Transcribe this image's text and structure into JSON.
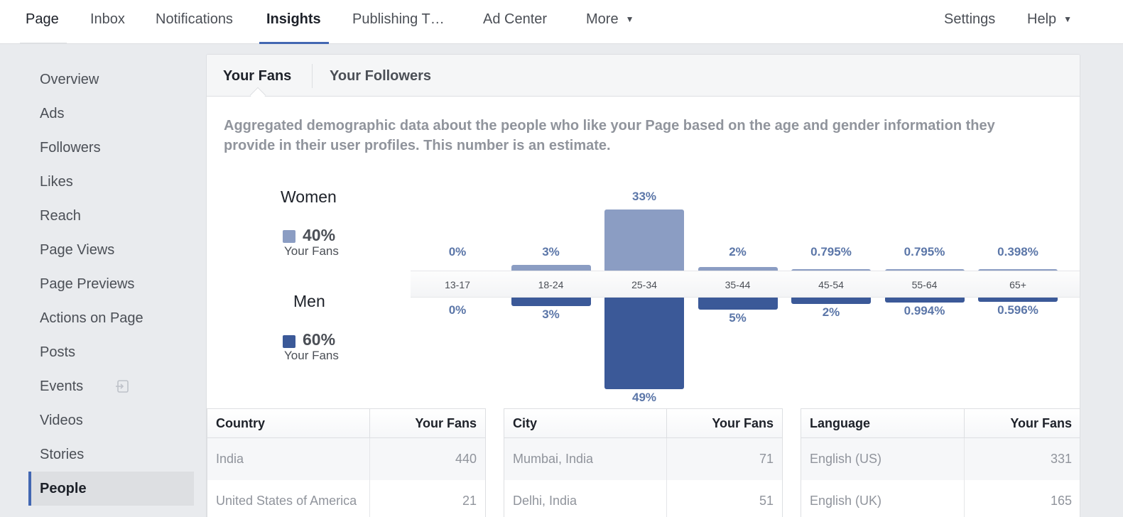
{
  "topnav": {
    "items": [
      "Page",
      "Inbox",
      "Notifications",
      "Insights",
      "Publishing T…",
      "Ad Center",
      "More"
    ],
    "settings": "Settings",
    "help": "Help",
    "caret": "▼"
  },
  "sidebar": {
    "items": [
      "Overview",
      "Ads",
      "Followers",
      "Likes",
      "Reach",
      "Page Views",
      "Page Previews",
      "Actions on Page",
      "Posts",
      "Events",
      "Videos",
      "Stories",
      "People"
    ]
  },
  "subtabs": [
    "Your Fans",
    "Your Followers"
  ],
  "description": "Aggregated demographic data about the people who like your Page based on the age and gender information they provide in their user profiles. This number is an estimate.",
  "legend": {
    "women": {
      "title": "Women",
      "pct": "40%",
      "sub": "Your Fans",
      "color": "#8b9dc3"
    },
    "men": {
      "title": "Men",
      "pct": "60%",
      "sub": "Your Fans",
      "color": "#3b5998"
    }
  },
  "chart_data": {
    "type": "bar",
    "categories": [
      "13-17",
      "18-24",
      "25-34",
      "35-44",
      "45-54",
      "55-64",
      "65+"
    ],
    "series": [
      {
        "name": "Women",
        "values": [
          0,
          3,
          33,
          2,
          0.795,
          0.795,
          0.398
        ],
        "labels": [
          "0%",
          "3%",
          "33%",
          "2%",
          "0.795%",
          "0.795%",
          "0.398%"
        ]
      },
      {
        "name": "Men",
        "values": [
          0,
          3,
          49,
          5,
          2,
          0.994,
          0.596
        ],
        "labels": [
          "0%",
          "3%",
          "49%",
          "5%",
          "2%",
          "0.994%",
          "0.596%"
        ]
      }
    ]
  },
  "tables": [
    {
      "col1": "Country",
      "col2": "Your Fans",
      "rows": [
        [
          "India",
          "440"
        ],
        [
          "United States of America",
          "21"
        ]
      ]
    },
    {
      "col1": "City",
      "col2": "Your Fans",
      "rows": [
        [
          "Mumbai, India",
          "71"
        ],
        [
          "Delhi, India",
          "51"
        ]
      ]
    },
    {
      "col1": "Language",
      "col2": "Your Fans",
      "rows": [
        [
          "English (US)",
          "331"
        ],
        [
          "English (UK)",
          "165"
        ]
      ]
    }
  ]
}
